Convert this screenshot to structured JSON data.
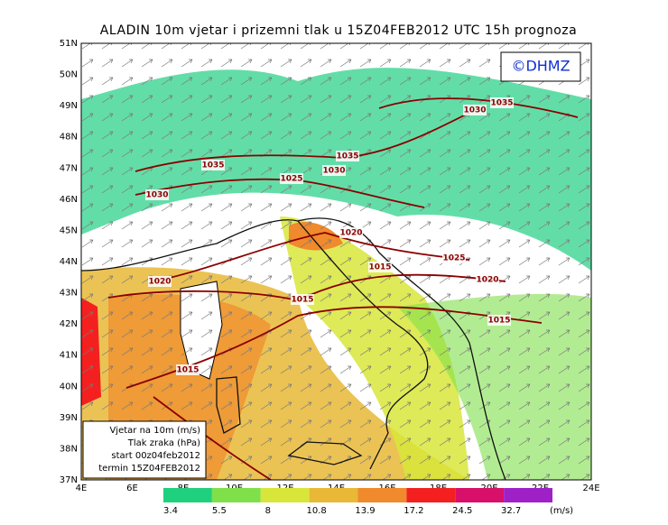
{
  "title": "ALADIN 10m vjetar i prizemni tlak u 15Z04FEB2012 UTC 15h prognoza",
  "logo": "©DHMZ",
  "lat_labels": [
    "51N",
    "50N",
    "49N",
    "48N",
    "47N",
    "46N",
    "45N",
    "44N",
    "43N",
    "42N",
    "41N",
    "40N",
    "39N",
    "38N",
    "37N"
  ],
  "lon_labels": [
    "4E",
    "6E",
    "8E",
    "10E",
    "12E",
    "14E",
    "16E",
    "18E",
    "20E",
    "22E",
    "24E"
  ],
  "isobar_labels": [
    "1035",
    "1030",
    "1035",
    "1030",
    "1035",
    "1030",
    "1025",
    "1020",
    "1015",
    "1025",
    "1020",
    "1020",
    "1015",
    "1015",
    "1015"
  ],
  "legend": [
    "Vjetar na 10m (m/s)",
    "Tlak zraka (hPa)",
    "start 00z04feb2012",
    "termin 15Z04FEB2012"
  ],
  "colorbar": {
    "labels": [
      3.4,
      5.5,
      8,
      10.8,
      13.9,
      17.2,
      24.5,
      32.7
    ],
    "unit": "(m/s)",
    "colors": [
      "#1fd07e",
      "#7fe04a",
      "#d8e63a",
      "#e8b836",
      "#f08a2c",
      "#f42020",
      "#d8106a",
      "#a020c8"
    ]
  }
}
